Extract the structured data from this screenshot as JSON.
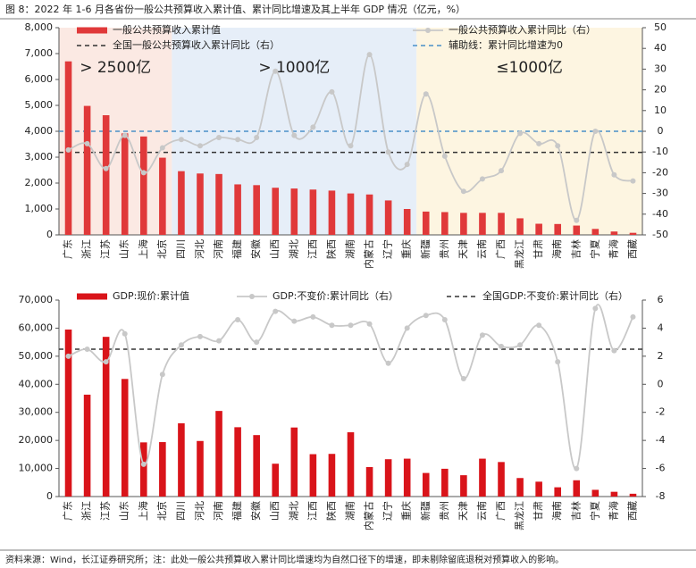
{
  "title": "图 8：2022 年 1-6 月各省份一般公共预算收入累计值、累计同比增速及其上半年 GDP 情况（亿元，%）",
  "source": "资料来源：Wind，长江证券研究所；注：此处一般公共预算收入累计同比增速均为自然口径下的增速，即未剔除留底退税对预算收入的影响。",
  "chart_data": [
    {
      "type": "bar",
      "categories": [
        "广东",
        "浙江",
        "江苏",
        "山东",
        "上海",
        "北京",
        "四川",
        "河北",
        "河南",
        "福建",
        "安徽",
        "山西",
        "湖北",
        "江西",
        "陕西",
        "湖南",
        "内蒙古",
        "辽宁",
        "重庆",
        "新疆",
        "贵州",
        "天津",
        "云南",
        "广西",
        "黑龙江",
        "甘肃",
        "海南",
        "吉林",
        "宁夏",
        "青海",
        "西藏"
      ],
      "series": [
        {
          "name": "一般公共预算收入累计值",
          "color": "#e0393a",
          "values": [
            6700,
            4980,
            4620,
            3920,
            3800,
            2980,
            2460,
            2370,
            2350,
            1950,
            1920,
            1820,
            1790,
            1750,
            1710,
            1600,
            1560,
            1330,
            1000,
            900,
            880,
            850,
            850,
            850,
            640,
            430,
            420,
            360,
            230,
            130,
            80
          ]
        },
        {
          "name": "一般公共预算收入累计同比（右）",
          "color": "#c8c8c8",
          "axis": "y2",
          "values": [
            -9,
            -6,
            -18,
            -2,
            -20,
            -8,
            -4,
            -7,
            -3,
            -4,
            -3,
            29,
            -2,
            2,
            19,
            -7,
            37,
            -10,
            -16,
            18,
            -12,
            -29,
            -23,
            -19,
            -1,
            -6,
            -7,
            -43,
            0,
            -21,
            -24
          ]
        }
      ],
      "reference_lines": [
        {
          "name": "全国一般公共预算收入累计同比（右）",
          "value": -10.2,
          "color": "#333333",
          "axis": "y2"
        },
        {
          "name": "辅助线：累计同比增速为0",
          "value": 0,
          "color": "#4a90c8",
          "axis": "y2"
        }
      ],
      "annotations": [
        {
          "text": "> 2500亿",
          "color": "#fbe9e3"
        },
        {
          "text": "> 1000亿",
          "color": "#e6eef8"
        },
        {
          "text": "≤1000亿",
          "color": "#fdf5e1"
        }
      ],
      "ylim": [
        0,
        8000
      ],
      "yticks": [
        0,
        {
          "value": 1000,
          "label": "1,000"
        },
        {
          "value": 2000,
          "label": "2,000"
        },
        {
          "value": 3000,
          "label": "3,000"
        },
        {
          "value": 4000,
          "label": "4,000"
        },
        {
          "value": 5000,
          "label": "5,000"
        },
        {
          "value": 6000,
          "label": "6,000"
        },
        {
          "value": 7000,
          "label": "7,000"
        },
        {
          "value": 8000,
          "label": "8,000"
        }
      ],
      "y2lim": [
        -50,
        50
      ],
      "y2ticks": [
        -50,
        -40,
        -30,
        -20,
        -10,
        0,
        10,
        20,
        30,
        40,
        50
      ]
    },
    {
      "type": "bar",
      "categories": [
        "广东",
        "浙江",
        "江苏",
        "山东",
        "上海",
        "北京",
        "四川",
        "河北",
        "河南",
        "福建",
        "安徽",
        "山西",
        "湖北",
        "江西",
        "陕西",
        "湖南",
        "内蒙古",
        "辽宁",
        "重庆",
        "新疆",
        "贵州",
        "天津",
        "云南",
        "广西",
        "黑龙江",
        "甘肃",
        "海南",
        "吉林",
        "宁夏",
        "青海",
        "西藏"
      ],
      "series": [
        {
          "name": "GDP:现价:累计值",
          "color": "#d9141a",
          "values": [
            59500,
            36300,
            56900,
            41900,
            19300,
            19400,
            26100,
            19800,
            30500,
            24700,
            21900,
            11700,
            24600,
            15100,
            15200,
            22900,
            10500,
            13300,
            13500,
            8400,
            9900,
            7600,
            13500,
            12300,
            6600,
            5300,
            3300,
            5800,
            2400,
            1700,
            1000
          ]
        },
        {
          "name": "GDP:不变价:累计同比（右）",
          "color": "#c8c8c8",
          "axis": "y2",
          "values": [
            2.0,
            2.5,
            1.6,
            3.6,
            -5.7,
            0.7,
            2.8,
            3.4,
            3.1,
            4.6,
            3.0,
            5.2,
            4.5,
            4.8,
            4.2,
            4.2,
            4.3,
            1.5,
            4.0,
            4.9,
            4.6,
            0.4,
            3.5,
            2.7,
            2.8,
            4.2,
            1.6,
            -6.0,
            5.4,
            2.4,
            4.8
          ]
        }
      ],
      "reference_lines": [
        {
          "name": "全国GDP:不变价:累计同比（右）",
          "value": 2.5,
          "color": "#333333",
          "axis": "y2"
        }
      ],
      "ylim": [
        0,
        70000
      ],
      "yticks": [
        0,
        {
          "value": 10000,
          "label": "10,000"
        },
        {
          "value": 20000,
          "label": "20,000"
        },
        {
          "value": 30000,
          "label": "30,000"
        },
        {
          "value": 40000,
          "label": "40,000"
        },
        {
          "value": 50000,
          "label": "50,000"
        },
        {
          "value": 60000,
          "label": "60,000"
        },
        {
          "value": 70000,
          "label": "70,000"
        }
      ],
      "y2lim": [
        -8,
        6
      ],
      "y2ticks": [
        -8,
        -6,
        -4,
        -2,
        0,
        2,
        4,
        6
      ]
    }
  ]
}
